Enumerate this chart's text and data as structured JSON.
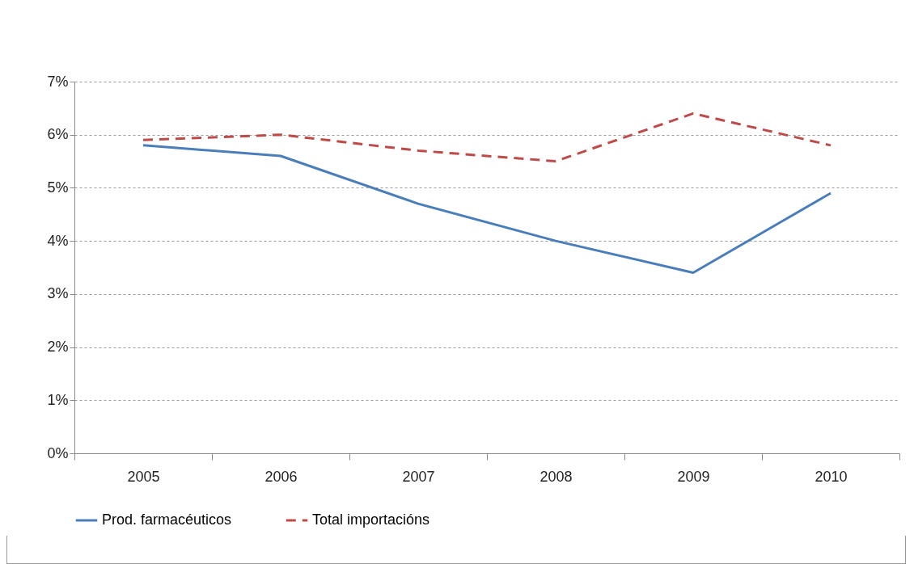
{
  "chart_data": {
    "type": "line",
    "categories": [
      "2005",
      "2006",
      "2007",
      "2008",
      "2009",
      "2010"
    ],
    "series": [
      {
        "name": "Prod. farmacéuticos",
        "color": "#4a7ebb",
        "line_style": "solid",
        "values": [
          5.8,
          5.6,
          4.7,
          4.0,
          3.4,
          4.9
        ]
      },
      {
        "name": "Total importacións",
        "color": "#be4b48",
        "line_style": "dashed",
        "values": [
          5.9,
          6.0,
          5.7,
          5.5,
          6.4,
          5.8
        ]
      }
    ],
    "ylim": [
      0,
      7
    ],
    "yticks": [
      {
        "value": 0,
        "label": "0%"
      },
      {
        "value": 1,
        "label": "1%"
      },
      {
        "value": 2,
        "label": "2%"
      },
      {
        "value": 3,
        "label": "3%"
      },
      {
        "value": 4,
        "label": "4%"
      },
      {
        "value": 5,
        "label": "5%"
      },
      {
        "value": 6,
        "label": "6%"
      },
      {
        "value": 7,
        "label": "7%"
      }
    ],
    "grid": "y",
    "legend": "bottom",
    "marker": "none"
  }
}
